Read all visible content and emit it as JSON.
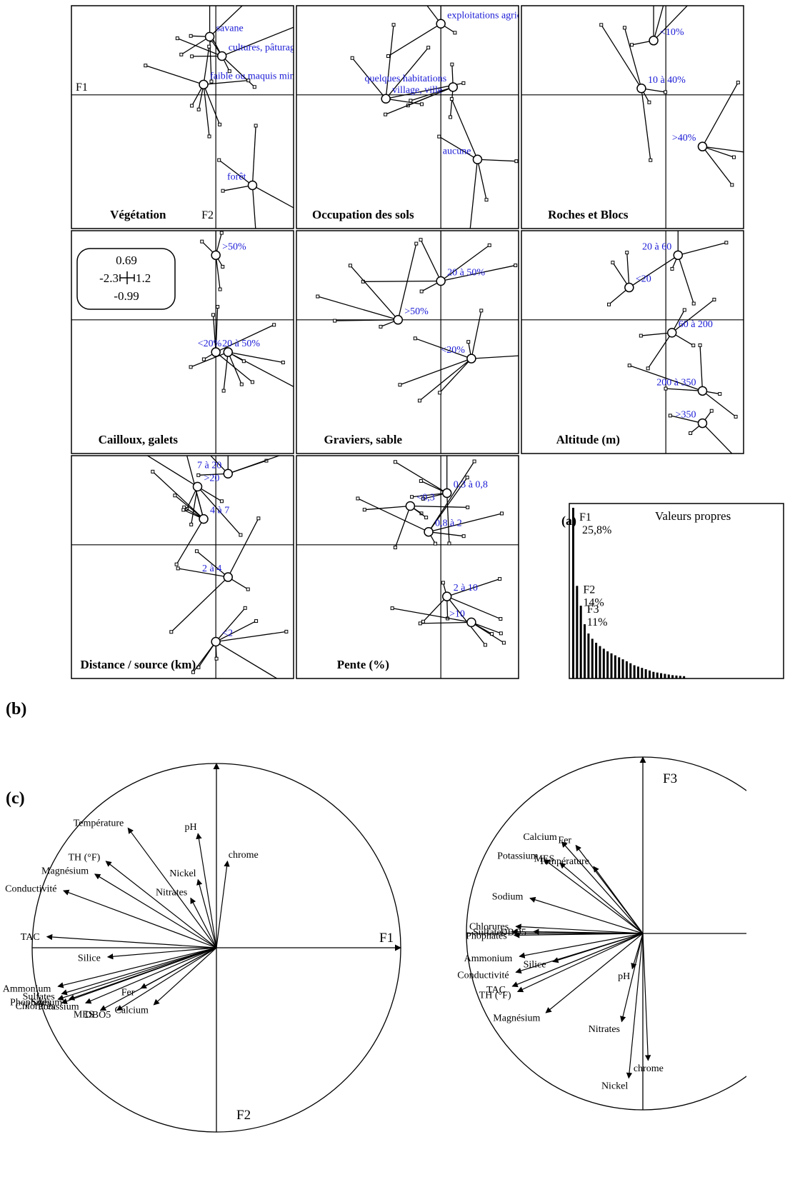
{
  "panel_labels": {
    "a": "(a)",
    "b": "(b)",
    "c": "(c)"
  },
  "scale_box": {
    "top": "0.69",
    "left": "-2.3",
    "right": "1.2",
    "bottom": "-0.99"
  },
  "chart_data": [
    {
      "type": "scatter",
      "name": "Végétation",
      "axis_labels": {
        "x": "F1",
        "y": "F2"
      },
      "categories": [
        {
          "label": "savane",
          "x": -0.05,
          "y": 0.45
        },
        {
          "label": "cultures, pâturages",
          "x": 0.05,
          "y": 0.3
        },
        {
          "label": "faible ou maquis minier",
          "x": -0.1,
          "y": 0.08
        },
        {
          "label": "forêt",
          "x": 0.3,
          "y": -0.7
        }
      ]
    },
    {
      "type": "scatter",
      "name": "Occupation des sols",
      "categories": [
        {
          "label": "exploitations agricoles",
          "x": 0.0,
          "y": 0.55
        },
        {
          "label": "quelques habitations",
          "x": 0.1,
          "y": 0.06
        },
        {
          "label": "village, ville",
          "x": -0.45,
          "y": -0.03
        },
        {
          "label": "aucune",
          "x": 0.3,
          "y": -0.5
        }
      ]
    },
    {
      "type": "scatter",
      "name": "Roches et Blocs",
      "categories": [
        {
          "label": "<10%",
          "x": -0.1,
          "y": 0.42
        },
        {
          "label": "10 à 40%",
          "x": -0.2,
          "y": 0.05
        },
        {
          "label": ">40%",
          "x": 0.3,
          "y": -0.4
        }
      ]
    },
    {
      "type": "scatter",
      "name": "Cailloux, galets",
      "categories": [
        {
          "label": ">50%",
          "x": 0.0,
          "y": 0.5
        },
        {
          "label": "20 à 50%",
          "x": 0.0,
          "y": -0.25
        },
        {
          "label": "<20%",
          "x": 0.1,
          "y": -0.25
        }
      ]
    },
    {
      "type": "scatter",
      "name": "Graviers, sable",
      "categories": [
        {
          "label": "20 à 50%",
          "x": 0.0,
          "y": 0.3
        },
        {
          "label": ">50%",
          "x": -0.35,
          "y": 0.0
        },
        {
          "label": "<20%",
          "x": 0.25,
          "y": -0.3
        }
      ]
    },
    {
      "type": "scatter",
      "name": "Altitude (m)",
      "categories": [
        {
          "label": "20 à 60",
          "x": 0.1,
          "y": 0.5
        },
        {
          "label": "<20",
          "x": -0.3,
          "y": 0.25
        },
        {
          "label": "60 à 200",
          "x": 0.05,
          "y": -0.1
        },
        {
          "label": "200 à 350",
          "x": 0.3,
          "y": -0.55
        },
        {
          "label": ">350",
          "x": 0.3,
          "y": -0.8
        }
      ]
    },
    {
      "type": "scatter",
      "name": "Distance / source (km)",
      "categories": [
        {
          "label": "7 à 20",
          "x": 0.1,
          "y": 0.55
        },
        {
          "label": ">20",
          "x": -0.15,
          "y": 0.45
        },
        {
          "label": "4 à 7",
          "x": -0.1,
          "y": 0.2
        },
        {
          "label": "2 à 4",
          "x": 0.1,
          "y": -0.25
        },
        {
          "label": "<2",
          "x": 0.0,
          "y": -0.75
        }
      ]
    },
    {
      "type": "scatter",
      "name": "Pente (%)",
      "categories": [
        {
          "label": "0,3 à 0,8",
          "x": 0.05,
          "y": 0.4
        },
        {
          "label": "<0,3",
          "x": -0.25,
          "y": 0.3
        },
        {
          "label": "0,8 à 2",
          "x": -0.1,
          "y": 0.1
        },
        {
          "label": "2 à 10",
          "x": 0.05,
          "y": -0.4
        },
        {
          "label": ">10",
          "x": 0.25,
          "y": -0.6
        }
      ]
    },
    {
      "type": "bar",
      "title": "Valeurs propres",
      "annotations": [
        {
          "axis": "F1",
          "value": "25,8%"
        },
        {
          "axis": "F2",
          "value": "14%"
        },
        {
          "axis": "F3",
          "value": "11%"
        }
      ],
      "values": [
        25.8,
        14,
        11,
        8.2,
        6.8,
        6.0,
        5.4,
        4.9,
        4.5,
        4.1,
        3.8,
        3.5,
        3.2,
        2.9,
        2.6,
        2.3,
        2.0,
        1.8,
        1.6,
        1.4,
        1.2,
        1.0,
        0.9,
        0.8,
        0.7,
        0.6,
        0.5,
        0.45,
        0.4,
        0.35
      ]
    },
    {
      "type": "scatter",
      "name": "correlation circle F1 x F2",
      "axis_labels": {
        "x": "F1",
        "y": "F2"
      },
      "variables": [
        {
          "label": "Température",
          "x": -0.48,
          "y": 0.65
        },
        {
          "label": "pH",
          "x": -0.1,
          "y": 0.62
        },
        {
          "label": "chrome",
          "x": 0.06,
          "y": 0.47
        },
        {
          "label": "TH (°F)",
          "x": -0.6,
          "y": 0.47
        },
        {
          "label": "Nickel",
          "x": -0.1,
          "y": 0.37
        },
        {
          "label": "Magnésium",
          "x": -0.66,
          "y": 0.4
        },
        {
          "label": "Nitrates",
          "x": -0.14,
          "y": 0.27
        },
        {
          "label": "Conductivité",
          "x": -0.83,
          "y": 0.31
        },
        {
          "label": "TAC",
          "x": -0.92,
          "y": 0.06
        },
        {
          "label": "Silice",
          "x": -0.59,
          "y": -0.05
        },
        {
          "label": "Ammonium",
          "x": -0.86,
          "y": -0.21
        },
        {
          "label": "Sulfates",
          "x": -0.84,
          "y": -0.25
        },
        {
          "label": "Phophates",
          "x": -0.86,
          "y": -0.28
        },
        {
          "label": "Chlorures",
          "x": -0.84,
          "y": -0.3
        },
        {
          "label": "Sodium",
          "x": -0.8,
          "y": -0.28
        },
        {
          "label": "Potassium",
          "x": -0.71,
          "y": -0.3
        },
        {
          "label": "MES",
          "x": -0.63,
          "y": -0.34
        },
        {
          "label": "DBO5",
          "x": -0.54,
          "y": -0.34
        },
        {
          "label": "Fer",
          "x": -0.41,
          "y": -0.22
        },
        {
          "label": "Calcium",
          "x": -0.34,
          "y": -0.31
        }
      ]
    },
    {
      "type": "scatter",
      "name": "correlation circle F1 x F3",
      "axis_labels": {
        "y": "F3"
      },
      "variables": [
        {
          "label": "Calcium",
          "x": -0.46,
          "y": 0.52
        },
        {
          "label": "Fer",
          "x": -0.38,
          "y": 0.5
        },
        {
          "label": "Potassium",
          "x": -0.56,
          "y": 0.42
        },
        {
          "label": "MES",
          "x": -0.47,
          "y": 0.4
        },
        {
          "label": "Température",
          "x": -0.28,
          "y": 0.38
        },
        {
          "label": "Sodium",
          "x": -0.64,
          "y": 0.2
        },
        {
          "label": "Chlorures",
          "x": -0.72,
          "y": 0.04
        },
        {
          "label": "DBO5",
          "x": -0.62,
          "y": 0.01
        },
        {
          "label": "Sulfates",
          "x": -0.74,
          "y": 0.01
        },
        {
          "label": "Phophates",
          "x": -0.73,
          "y": -0.01
        },
        {
          "label": "Ammonium",
          "x": -0.7,
          "y": -0.13
        },
        {
          "label": "Silice",
          "x": -0.51,
          "y": -0.16
        },
        {
          "label": "Conductivité",
          "x": -0.72,
          "y": -0.22
        },
        {
          "label": "TAC",
          "x": -0.74,
          "y": -0.3
        },
        {
          "label": "TH (°F)",
          "x": -0.71,
          "y": -0.33
        },
        {
          "label": "Magnésium",
          "x": -0.55,
          "y": -0.45
        },
        {
          "label": "pH",
          "x": -0.06,
          "y": -0.2
        },
        {
          "label": "Nitrates",
          "x": -0.12,
          "y": -0.5
        },
        {
          "label": "Nickel",
          "x": -0.08,
          "y": -0.82
        },
        {
          "label": "chrome",
          "x": 0.03,
          "y": -0.72
        }
      ]
    }
  ]
}
